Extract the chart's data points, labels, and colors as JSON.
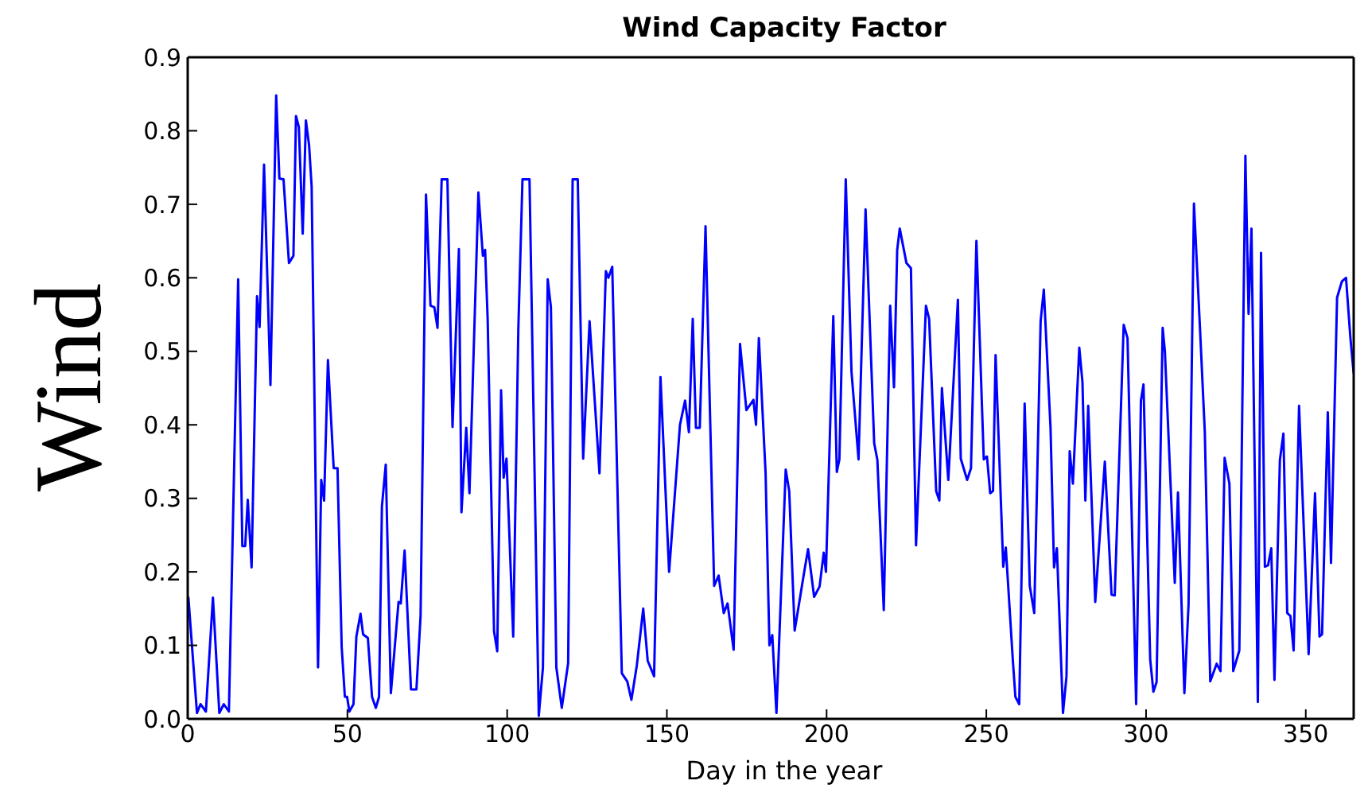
{
  "chart_data": {
    "type": "line",
    "title": "Wind Capacity Factor",
    "xlabel": "Day in the year",
    "ylabel": "Wind",
    "xlim": [
      0,
      365
    ],
    "xticks": [
      0,
      50,
      100,
      150,
      200,
      250,
      300,
      350
    ],
    "ylim": [
      0,
      0.9
    ],
    "yticks": [
      {
        "value": 0,
        "label": "0.0"
      },
      {
        "value": 0.1,
        "label": "0.1"
      },
      {
        "value": 0.2,
        "label": "0.2"
      },
      {
        "value": 0.3,
        "label": "0.3"
      },
      {
        "value": 0.4,
        "label": "0.4"
      },
      {
        "value": 0.5,
        "label": "0.5"
      },
      {
        "value": 0.6,
        "label": "0.6"
      },
      {
        "value": 0.7,
        "label": "0.7"
      },
      {
        "value": 0.8,
        "label": "0.8"
      },
      {
        "value": 0.9,
        "label": "0.9"
      }
    ],
    "line_style": "solid",
    "series": [
      {
        "color": "#0000ff",
        "x": [
          0.2,
          2.9,
          4,
          5.7,
          7.9,
          9.9,
          11.3,
          12.9,
          15.8,
          17.1,
          18,
          18.8,
          20,
          21.7,
          22.5,
          23.9,
          25.9,
          27.7,
          28.7,
          30,
          31.7,
          33.1,
          33.9,
          34.8,
          36,
          37,
          38,
          38.8,
          40.8,
          41.8,
          42.7,
          43.9,
          45.7,
          46.9,
          48.2,
          49.2,
          49.9,
          50.6,
          51.9,
          52.8,
          54.1,
          54.9,
          56.4,
          57.7,
          58.9,
          59.9,
          60.8,
          62,
          63.6,
          66,
          66.7,
          67.9,
          69.9,
          71.6,
          72.9,
          74.6,
          76,
          77.2,
          78.2,
          79.5,
          81.3,
          82.9,
          84.9,
          85.7,
          87.2,
          88.2,
          91,
          92.4,
          93.1,
          93.9,
          95.9,
          96.9,
          98.1,
          98.9,
          99.8,
          101.9,
          103.5,
          104.8,
          107,
          109.9,
          111.2,
          112.7,
          113.7,
          115.4,
          117.1,
          119.1,
          120.5,
          122.1,
          123.8,
          125.8,
          128.9,
          130.9,
          131.7,
          132.9,
          135.9,
          137.6,
          138.9,
          140.6,
          142.6,
          144,
          146,
          148,
          150.7,
          154.1,
          155.7,
          156.9,
          158.1,
          159.1,
          160.3,
          162.1,
          164.8,
          166.2,
          167.8,
          169,
          170.9,
          172.9,
          174.9,
          177.1,
          177.9,
          178.8,
          180.9,
          182.1,
          183,
          184.3,
          187.2,
          188.3,
          190,
          193,
          194.2,
          196.1,
          197.8,
          199.1,
          199.8,
          202.1,
          203.2,
          204,
          206,
          207.8,
          210,
          212.2,
          214.9,
          215.9,
          217.9,
          219.9,
          221.1,
          222.1,
          222.9,
          225,
          226.4,
          228,
          231.1,
          232.1,
          234.3,
          235.3,
          236.1,
          238.1,
          241.1,
          242,
          244,
          245.2,
          246.9,
          249.2,
          250.2,
          251.2,
          252.1,
          252.9,
          255.3,
          256.1,
          258.3,
          259.1,
          260.3,
          262,
          263.6,
          265,
          267,
          268,
          270.1,
          271.2,
          272.1,
          274,
          275.1,
          276.1,
          277.1,
          279.1,
          280.1,
          281,
          281.9,
          284.1,
          287.1,
          289.2,
          290.2,
          293,
          294.2,
          296.9,
          298.4,
          299.2,
          301.3,
          302.3,
          303.3,
          305.2,
          305.9,
          309,
          310,
          312,
          313.3,
          315,
          316.9,
          318.4,
          320.1,
          322.1,
          323.3,
          324.6,
          326.1,
          327.3,
          329.2,
          331.1,
          332.1,
          333,
          335,
          336,
          337.2,
          338.2,
          339.2,
          340.2,
          341.9,
          343,
          344.2,
          345.2,
          346.2,
          347.9,
          350.9,
          352.9,
          353.6,
          354.3,
          355.1,
          356.9,
          357.9,
          359.8,
          361.3,
          362.6,
          364,
          365
        ],
        "values": [
          0.166,
          0.008,
          0.02,
          0.01,
          0.165,
          0.008,
          0.02,
          0.01,
          0.598,
          0.235,
          0.235,
          0.298,
          0.206,
          0.575,
          0.533,
          0.754,
          0.454,
          0.848,
          0.735,
          0.734,
          0.62,
          0.63,
          0.82,
          0.805,
          0.66,
          0.814,
          0.78,
          0.724,
          0.07,
          0.325,
          0.297,
          0.488,
          0.341,
          0.341,
          0.098,
          0.03,
          0.03,
          0.01,
          0.02,
          0.112,
          0.143,
          0.115,
          0.11,
          0.03,
          0.015,
          0.03,
          0.289,
          0.346,
          0.035,
          0.159,
          0.157,
          0.229,
          0.04,
          0.04,
          0.14,
          0.713,
          0.562,
          0.56,
          0.532,
          0.734,
          0.734,
          0.397,
          0.639,
          0.281,
          0.396,
          0.307,
          0.716,
          0.63,
          0.638,
          0.544,
          0.119,
          0.092,
          0.447,
          0.328,
          0.354,
          0.112,
          0.53,
          0.734,
          0.734,
          0.004,
          0.07,
          0.598,
          0.56,
          0.07,
          0.015,
          0.076,
          0.734,
          0.734,
          0.354,
          0.541,
          0.334,
          0.609,
          0.6,
          0.615,
          0.062,
          0.051,
          0.026,
          0.073,
          0.15,
          0.079,
          0.058,
          0.465,
          0.2,
          0.4,
          0.433,
          0.39,
          0.544,
          0.396,
          0.396,
          0.67,
          0.181,
          0.195,
          0.144,
          0.157,
          0.094,
          0.51,
          0.42,
          0.434,
          0.4,
          0.518,
          0.335,
          0.1,
          0.114,
          0.008,
          0.339,
          0.31,
          0.12,
          0.2,
          0.231,
          0.166,
          0.18,
          0.226,
          0.2,
          0.548,
          0.336,
          0.353,
          0.734,
          0.472,
          0.353,
          0.693,
          0.375,
          0.352,
          0.148,
          0.562,
          0.451,
          0.638,
          0.667,
          0.62,
          0.613,
          0.236,
          0.562,
          0.544,
          0.31,
          0.297,
          0.45,
          0.325,
          0.57,
          0.354,
          0.325,
          0.341,
          0.65,
          0.353,
          0.357,
          0.307,
          0.31,
          0.495,
          0.207,
          0.233,
          0.08,
          0.03,
          0.02,
          0.429,
          0.181,
          0.144,
          0.541,
          0.584,
          0.396,
          0.206,
          0.232,
          0.008,
          0.058,
          0.364,
          0.32,
          0.505,
          0.458,
          0.297,
          0.426,
          0.159,
          0.35,
          0.169,
          0.168,
          0.536,
          0.518,
          0.02,
          0.433,
          0.455,
          0.081,
          0.037,
          0.05,
          0.532,
          0.5,
          0.185,
          0.308,
          0.035,
          0.155,
          0.701,
          0.53,
          0.39,
          0.051,
          0.075,
          0.065,
          0.355,
          0.32,
          0.065,
          0.093,
          0.766,
          0.551,
          0.667,
          0.023,
          0.634,
          0.207,
          0.209,
          0.232,
          0.053,
          0.352,
          0.388,
          0.144,
          0.14,
          0.093,
          0.426,
          0.088,
          0.307,
          0.212,
          0.112,
          0.115,
          0.417,
          0.212,
          0.573,
          0.595,
          0.6,
          0.517,
          0.47
        ]
      }
    ]
  }
}
